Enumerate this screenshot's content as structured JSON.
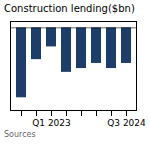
{
  "chart_data": {
    "type": "bar",
    "title": "Construction lending($bn)",
    "annotations": [
      "Sources"
    ],
    "categories": [
      null,
      null,
      "Q1 2023",
      null,
      null,
      null,
      null,
      "Q3 2024"
    ],
    "values": [
      -55,
      -25,
      -15,
      -35,
      -32,
      -28,
      -32,
      -28
    ],
    "color": "#1d3d6b",
    "ylim": [
      -65,
      5
    ],
    "yticks": [
      0
    ],
    "tick_labels": "x"
  }
}
